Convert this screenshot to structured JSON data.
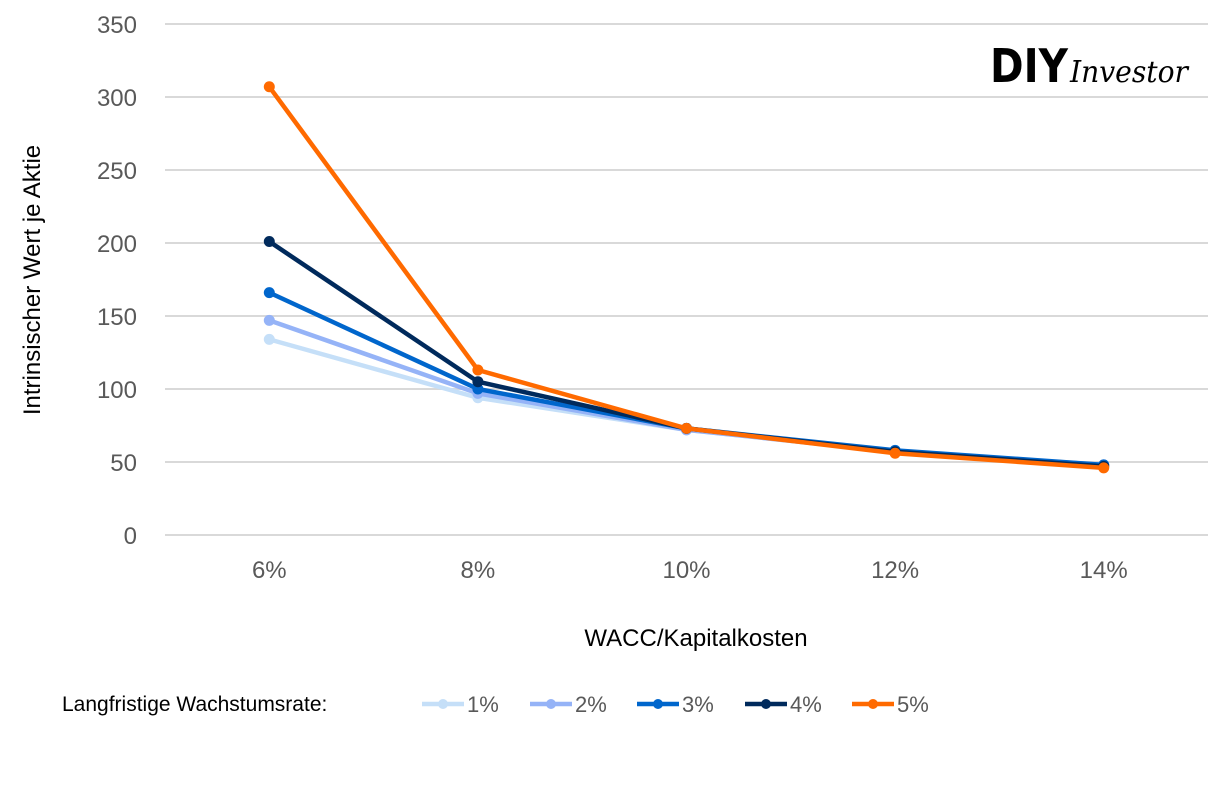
{
  "chart_data": {
    "type": "line",
    "title": "",
    "xlabel": "WACC/Kapitalkosten",
    "ylabel": "Intrinsischer Wert je Aktie",
    "categories": [
      "6%",
      "8%",
      "10%",
      "12%",
      "14%"
    ],
    "ylim": [
      0,
      350
    ],
    "yticks": [
      0,
      50,
      100,
      150,
      200,
      250,
      300,
      350
    ],
    "ytick_labels": [
      "0",
      "50",
      "100",
      "150",
      "200",
      "250",
      "300",
      "350"
    ],
    "grid": true,
    "legend_title": "Langfristige Wachstumsrate:",
    "legend_position": "bottom",
    "series": [
      {
        "name": "1%",
        "color": "#c5dff8",
        "values": [
          134,
          94,
          72,
          57,
          48
        ]
      },
      {
        "name": "2%",
        "color": "#95b3f7",
        "values": [
          147,
          97,
          72,
          57,
          48
        ]
      },
      {
        "name": "3%",
        "color": "#0066cc",
        "values": [
          166,
          100,
          73,
          58,
          48
        ]
      },
      {
        "name": "4%",
        "color": "#002a5c",
        "values": [
          201,
          105,
          73,
          57,
          47
        ]
      },
      {
        "name": "5%",
        "color": "#ff6a00",
        "values": [
          307,
          113,
          73,
          56,
          46
        ]
      }
    ]
  },
  "logo": {
    "main": "DIY",
    "script": "Investor"
  }
}
